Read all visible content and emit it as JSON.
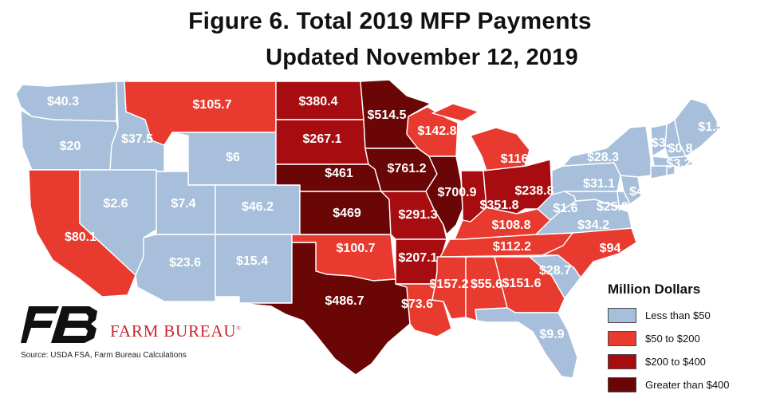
{
  "title": {
    "line1": "Figure 6. Total 2019 MFP Payments",
    "line2": "Updated November 12, 2019"
  },
  "unit_label": "Million Dollars",
  "legend": [
    {
      "label": "Less than $50",
      "color": "#a7bfda"
    },
    {
      "label": "$50 to $200",
      "color": "#e83a2e"
    },
    {
      "label": "$200 to $400",
      "color": "#a70d10"
    },
    {
      "label": "Greater than $400",
      "color": "#6b0606"
    }
  ],
  "brand": {
    "name": "FARM BUREAU",
    "mark": "FB",
    "registered": "®"
  },
  "source": "Source: USDA FSA, Farm Bureau Calculations",
  "states": [
    {
      "id": "WA",
      "value": "$40.3",
      "category": 0
    },
    {
      "id": "OR",
      "value": "$20",
      "category": 0
    },
    {
      "id": "ID",
      "value": "$37.5",
      "category": 0
    },
    {
      "id": "MT",
      "value": "$105.7",
      "category": 1
    },
    {
      "id": "WY",
      "value": "$6",
      "category": 0
    },
    {
      "id": "CA",
      "value": "$80.1",
      "category": 1
    },
    {
      "id": "NV",
      "value": "$2.6",
      "category": 0
    },
    {
      "id": "UT",
      "value": "$7.4",
      "category": 0
    },
    {
      "id": "CO",
      "value": "$46.2",
      "category": 0
    },
    {
      "id": "AZ",
      "value": "$23.6",
      "category": 0
    },
    {
      "id": "NM",
      "value": "$15.4",
      "category": 0
    },
    {
      "id": "ND",
      "value": "$380.4",
      "category": 2
    },
    {
      "id": "SD",
      "value": "$267.1",
      "category": 2
    },
    {
      "id": "NE",
      "value": "$461",
      "category": 3
    },
    {
      "id": "KS",
      "value": "$469",
      "category": 3
    },
    {
      "id": "OK",
      "value": "$100.7",
      "category": 1
    },
    {
      "id": "TX",
      "value": "$486.7",
      "category": 3
    },
    {
      "id": "MN",
      "value": "$514.5",
      "category": 3
    },
    {
      "id": "IA",
      "value": "$761.2",
      "category": 3
    },
    {
      "id": "MO",
      "value": "$291.3",
      "category": 2
    },
    {
      "id": "AR",
      "value": "$207.1",
      "category": 2
    },
    {
      "id": "LA",
      "value": "$73.6",
      "category": 1
    },
    {
      "id": "WI",
      "value": "$142.8",
      "category": 1
    },
    {
      "id": "IL",
      "value": "$700.9",
      "category": 3
    },
    {
      "id": "MI",
      "value": "$116",
      "category": 1
    },
    {
      "id": "IN",
      "value": "$351.8",
      "category": 2
    },
    {
      "id": "OH",
      "value": "$238.8",
      "category": 2
    },
    {
      "id": "KY",
      "value": "$108.8",
      "category": 1
    },
    {
      "id": "TN",
      "value": "$112.2",
      "category": 1
    },
    {
      "id": "MS",
      "value": "$157.2",
      "category": 1
    },
    {
      "id": "AL",
      "value": "$55.6",
      "category": 1
    },
    {
      "id": "GA",
      "value": "$151.6",
      "category": 1
    },
    {
      "id": "FL",
      "value": "$9.9",
      "category": 0
    },
    {
      "id": "SC",
      "value": "$28.7",
      "category": 0
    },
    {
      "id": "NC",
      "value": "$94",
      "category": 1
    },
    {
      "id": "VA",
      "value": "$34.2",
      "category": 0
    },
    {
      "id": "WV",
      "value": "$1.6",
      "category": 0
    },
    {
      "id": "PA",
      "value": "$31.1",
      "category": 0
    },
    {
      "id": "NY",
      "value": "$28.3",
      "category": 0
    },
    {
      "id": "ME",
      "value": "$1.5",
      "category": 0
    },
    {
      "id": "VT",
      "value": "$3.",
      "category": 0
    },
    {
      "id": "NH",
      "value": "$0.8",
      "category": 0
    },
    {
      "id": "MA",
      "value": "$3.2",
      "category": 0
    },
    {
      "id": "NJ",
      "value": "$4",
      "category": 0
    },
    {
      "id": "MD",
      "value": "$25.9",
      "category": 0
    },
    {
      "id": "CT",
      "value": "",
      "category": 0
    },
    {
      "id": "RI",
      "value": "",
      "category": 0
    },
    {
      "id": "DE",
      "value": "",
      "category": 0
    }
  ]
}
